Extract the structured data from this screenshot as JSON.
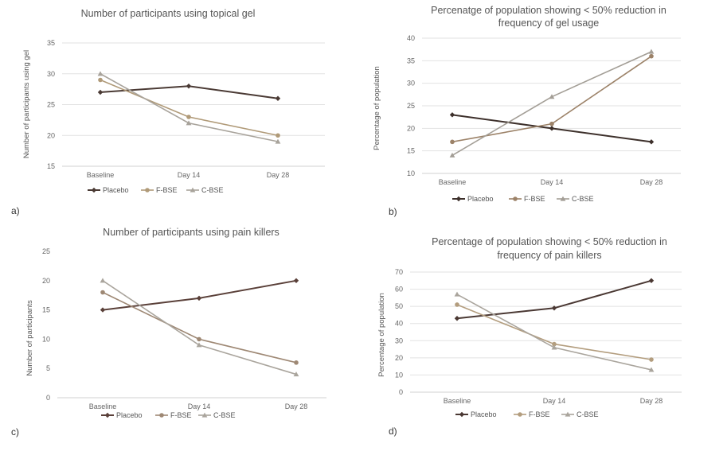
{
  "chart_data": [
    {
      "type": "line",
      "panel": "a)",
      "title": [
        "Number of participants using topical gel"
      ],
      "xlabel": "",
      "ylabel": "Number of participants using gel",
      "categories": [
        "Baseline",
        "Day 14",
        "Day 28"
      ],
      "ylim": [
        15,
        35
      ],
      "yticks": [
        15,
        20,
        25,
        30,
        35
      ],
      "grid": true,
      "legend": "bottom",
      "series": [
        {
          "name": "Placebo",
          "values": [
            27,
            28,
            26
          ],
          "color": "#4a3a34",
          "marker": "diamond"
        },
        {
          "name": "F-BSE",
          "values": [
            29,
            23,
            20
          ],
          "color": "#b09a78",
          "marker": "circle"
        },
        {
          "name": "C-BSE",
          "values": [
            30,
            22,
            19
          ],
          "color": "#a8a39b",
          "marker": "triangle"
        }
      ]
    },
    {
      "type": "line",
      "panel": "b)",
      "title": [
        "Percenatge of population showing < 50% reduction in",
        "frequency of gel usage"
      ],
      "xlabel": "",
      "ylabel": "Percentage of population",
      "categories": [
        "Baseline",
        "Day 14",
        "Day 28"
      ],
      "ylim": [
        10,
        40
      ],
      "yticks": [
        10,
        15,
        20,
        25,
        30,
        35,
        40
      ],
      "grid": true,
      "legend": "bottom",
      "series": [
        {
          "name": "Placebo",
          "values": [
            23,
            20,
            17
          ],
          "color": "#3d302b",
          "marker": "diamond"
        },
        {
          "name": "F-BSE",
          "values": [
            17,
            21,
            36
          ],
          "color": "#9c8268",
          "marker": "circle"
        },
        {
          "name": "C-BSE",
          "values": [
            14,
            27,
            37
          ],
          "color": "#a39e96",
          "marker": "triangle"
        }
      ]
    },
    {
      "type": "line",
      "panel": "c)",
      "title": [
        "Number of participants using pain killers"
      ],
      "xlabel": "",
      "ylabel": "Number of participants",
      "categories": [
        "Baseline",
        "Day 14",
        "Day 28"
      ],
      "ylim": [
        0,
        25
      ],
      "yticks": [
        0,
        5,
        10,
        15,
        20,
        25
      ],
      "grid": false,
      "legend": "bottom",
      "series": [
        {
          "name": "Placebo",
          "values": [
            15,
            17,
            20
          ],
          "color": "#5a4039",
          "marker": "diamond"
        },
        {
          "name": "F-BSE",
          "values": [
            18,
            10,
            6
          ],
          "color": "#9e8874",
          "marker": "circle"
        },
        {
          "name": "C-BSE",
          "values": [
            20,
            9,
            4
          ],
          "color": "#aaa59d",
          "marker": "triangle"
        }
      ]
    },
    {
      "type": "line",
      "panel": "d)",
      "title": [
        "Percentage of population showing < 50% reduction in",
        "frequency of pain killers"
      ],
      "xlabel": "",
      "ylabel": "Percentage of population",
      "categories": [
        "Baseline",
        "Day 14",
        "Day 28"
      ],
      "ylim": [
        0,
        70
      ],
      "yticks": [
        0,
        10,
        20,
        30,
        40,
        50,
        60,
        70
      ],
      "grid": true,
      "legend": "bottom",
      "series": [
        {
          "name": "Placebo",
          "values": [
            43,
            49,
            65
          ],
          "color": "#4a3833",
          "marker": "diamond"
        },
        {
          "name": "F-BSE",
          "values": [
            51,
            28,
            19
          ],
          "color": "#b39d7e",
          "marker": "circle"
        },
        {
          "name": "C-BSE",
          "values": [
            57,
            26,
            13
          ],
          "color": "#aaa59d",
          "marker": "triangle"
        }
      ]
    }
  ]
}
